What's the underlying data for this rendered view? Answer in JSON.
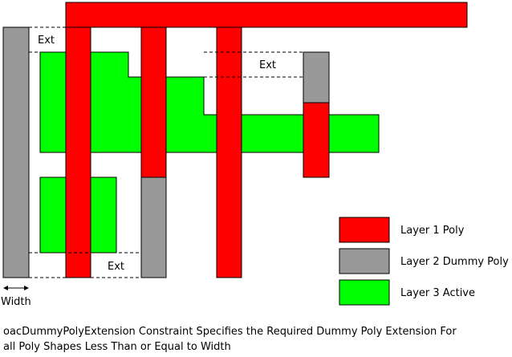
{
  "colors": {
    "layer1_poly": "#ff0000",
    "layer2_dummy_poly": "#999999",
    "layer3_active": "#00ff00",
    "outline": "#000000"
  },
  "annotations": {
    "ext_top_left": "Ext",
    "ext_top_right": "Ext",
    "ext_bottom": "Ext",
    "width": "Width"
  },
  "legend": {
    "items": [
      {
        "label": "Layer 1 Poly",
        "color": "#ff0000"
      },
      {
        "label": "Layer 2 Dummy Poly",
        "color": "#999999"
      },
      {
        "label": "Layer 3 Active",
        "color": "#00ff00"
      }
    ]
  },
  "caption": {
    "line1": "oacDummyPolyExtension Constraint Specifies the Required Dummy Poly Extension For",
    "line2": "all Poly Shapes Less Than or Equal to Width"
  }
}
